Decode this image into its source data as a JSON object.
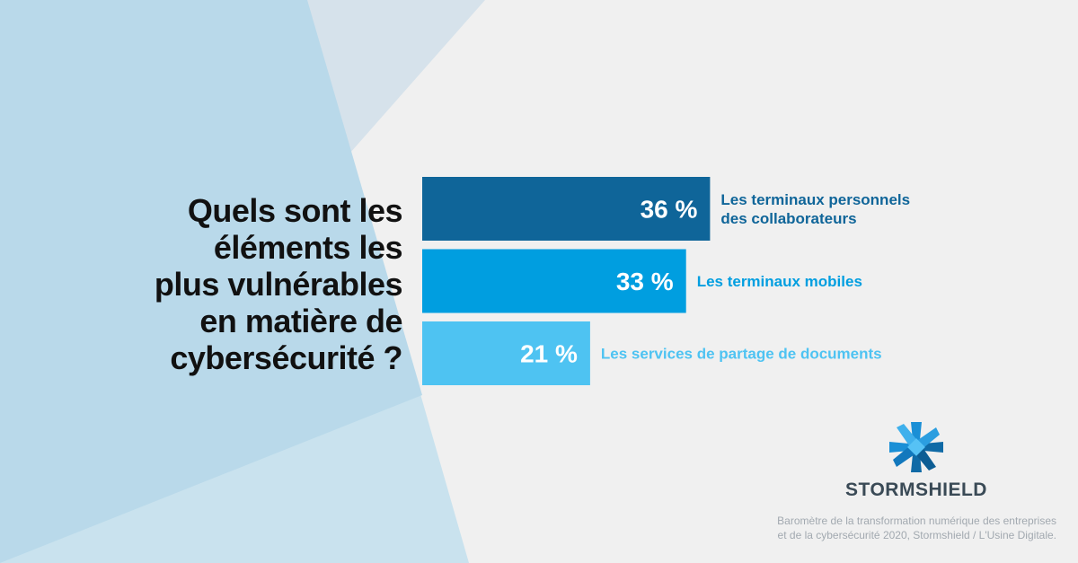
{
  "colors": {
    "background": "#f0f0f0",
    "panel_light": "#c9e2ee",
    "panel_mid": "#b9d9ea",
    "panel_grey": "#d6e2eb",
    "bar_1": "#0f6599",
    "bar_2": "#009ee0",
    "bar_3": "#4ec3f2"
  },
  "question_lines": [
    "Quels sont les",
    "éléments les",
    "plus vulnérables",
    "en matière de",
    "cybersécurité ?"
  ],
  "chart_data": {
    "type": "bar",
    "orientation": "horizontal",
    "title": "Quels sont les éléments les plus vulnérables en matière de cybersécurité ?",
    "categories": [
      "Les terminaux personnels des collaborateurs",
      "Les terminaux mobiles",
      "Les services de partage de documents"
    ],
    "category_lines": [
      [
        "Les terminaux personnels",
        "des collaborateurs"
      ],
      [
        "Les terminaux mobiles"
      ],
      [
        "Les services de partage de documents"
      ]
    ],
    "values": [
      36,
      33,
      21
    ],
    "value_labels": [
      "36 %",
      "33 %",
      "21 %"
    ],
    "unit": "%",
    "grid": false,
    "legend": "none"
  },
  "logo": {
    "name": "STORMSHIELD",
    "icon": "stormshield-star-icon"
  },
  "source_lines": [
    "Baromètre de la transformation numérique des entreprises",
    "et de la cybersécurité 2020, Stormshield / L'Usine Digitale."
  ]
}
